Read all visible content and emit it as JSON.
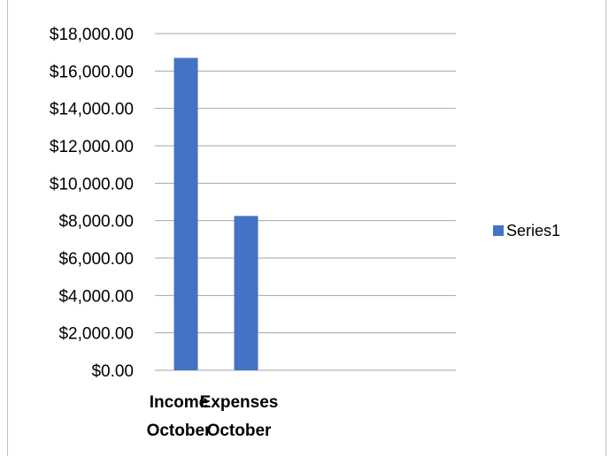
{
  "chart_data": {
    "type": "bar",
    "title": "",
    "xlabel": "",
    "ylabel": "",
    "categories": [
      [
        "Income",
        "October"
      ],
      [
        "Expenses",
        "October"
      ]
    ],
    "series": [
      {
        "name": "Series1",
        "values": [
          16700,
          8250
        ]
      }
    ],
    "ylim": [
      0,
      18000
    ],
    "ytick_step": 2000,
    "ytick_labels": [
      "$0.00",
      "$2,000.00",
      "$4,000.00",
      "$6,000.00",
      "$8,000.00",
      "$10,000.00",
      "$12,000.00",
      "$14,000.00",
      "$16,000.00",
      "$18,000.00"
    ],
    "grid": true,
    "legend_position": "right",
    "bar_color": "#4472c4",
    "grid_color": "#a6a6a6"
  }
}
